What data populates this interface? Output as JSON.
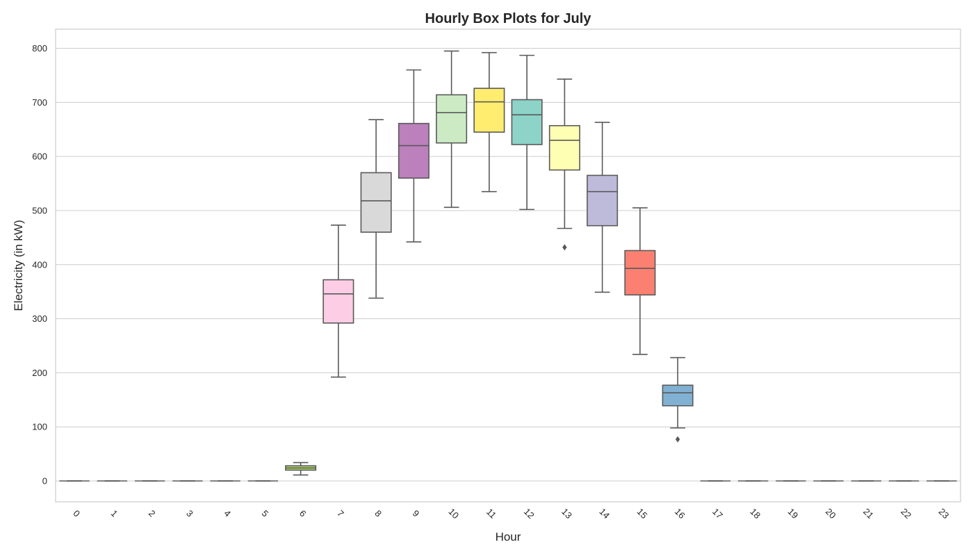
{
  "chart_data": {
    "type": "box",
    "title": "Hourly Box Plots for July",
    "xlabel": "Hour",
    "ylabel": "Electricity (in kW)",
    "ylim": [
      -40,
      835
    ],
    "yticks": [
      0,
      100,
      200,
      300,
      400,
      500,
      600,
      700,
      800
    ],
    "grid": "horizontal",
    "categories": [
      "0",
      "1",
      "2",
      "3",
      "4",
      "5",
      "6",
      "7",
      "8",
      "9",
      "10",
      "11",
      "12",
      "13",
      "14",
      "15",
      "16",
      "17",
      "18",
      "19",
      "20",
      "21",
      "22",
      "23"
    ],
    "boxes": [
      {
        "whislo": 0,
        "q1": 0,
        "med": 0,
        "q3": 0,
        "whishi": 0,
        "fliers": [],
        "color": "#8dd3c7"
      },
      {
        "whislo": 0,
        "q1": 0,
        "med": 0,
        "q3": 0,
        "whishi": 0,
        "fliers": [],
        "color": "#ffffb3"
      },
      {
        "whislo": 0,
        "q1": 0,
        "med": 0,
        "q3": 0,
        "whishi": 0,
        "fliers": [],
        "color": "#bebada"
      },
      {
        "whislo": 0,
        "q1": 0,
        "med": 0,
        "q3": 0,
        "whishi": 0,
        "fliers": [],
        "color": "#fb8072"
      },
      {
        "whislo": 0,
        "q1": 0,
        "med": 0,
        "q3": 0,
        "whishi": 0,
        "fliers": [],
        "color": "#80b1d3"
      },
      {
        "whislo": 0,
        "q1": 0,
        "med": 0,
        "q3": 0,
        "whishi": 0,
        "fliers": [],
        "color": "#fdb462"
      },
      {
        "whislo": 11,
        "q1": 20,
        "med": 24,
        "q3": 28,
        "whishi": 34,
        "fliers": [],
        "color": "#b3de69"
      },
      {
        "whislo": 192,
        "q1": 292,
        "med": 346,
        "q3": 372,
        "whishi": 473,
        "fliers": [],
        "color": "#fccde5"
      },
      {
        "whislo": 338,
        "q1": 460,
        "med": 518,
        "q3": 570,
        "whishi": 668,
        "fliers": [],
        "color": "#d9d9d9"
      },
      {
        "whislo": 442,
        "q1": 560,
        "med": 620,
        "q3": 661,
        "whishi": 760,
        "fliers": [],
        "color": "#bc80bd"
      },
      {
        "whislo": 506,
        "q1": 625,
        "med": 681,
        "q3": 714,
        "whishi": 795,
        "fliers": [],
        "color": "#ccebc5"
      },
      {
        "whislo": 535,
        "q1": 645,
        "med": 701,
        "q3": 726,
        "whishi": 792,
        "fliers": [],
        "color": "#ffed6f"
      },
      {
        "whislo": 502,
        "q1": 622,
        "med": 677,
        "q3": 705,
        "whishi": 787,
        "fliers": [],
        "color": "#8dd3c7"
      },
      {
        "whislo": 467,
        "q1": 575,
        "med": 630,
        "q3": 657,
        "whishi": 743,
        "fliers": [
          432
        ],
        "color": "#ffffb3"
      },
      {
        "whislo": 349,
        "q1": 472,
        "med": 535,
        "q3": 565,
        "whishi": 663,
        "fliers": [],
        "color": "#bebada"
      },
      {
        "whislo": 234,
        "q1": 344,
        "med": 393,
        "q3": 426,
        "whishi": 505,
        "fliers": [],
        "color": "#fb8072"
      },
      {
        "whislo": 98,
        "q1": 139,
        "med": 163,
        "q3": 177,
        "whishi": 228,
        "fliers": [
          77
        ],
        "color": "#80b1d3"
      },
      {
        "whislo": 0,
        "q1": 0,
        "med": 0,
        "q3": 0,
        "whishi": 0,
        "fliers": [],
        "color": "#fdb462"
      },
      {
        "whislo": 0,
        "q1": 0,
        "med": 0,
        "q3": 0,
        "whishi": 0,
        "fliers": [],
        "color": "#b3de69"
      },
      {
        "whislo": 0,
        "q1": 0,
        "med": 0,
        "q3": 0,
        "whishi": 0,
        "fliers": [],
        "color": "#fccde5"
      },
      {
        "whislo": 0,
        "q1": 0,
        "med": 0,
        "q3": 0,
        "whishi": 0,
        "fliers": [],
        "color": "#d9d9d9"
      },
      {
        "whislo": 0,
        "q1": 0,
        "med": 0,
        "q3": 0,
        "whishi": 0,
        "fliers": [],
        "color": "#bc80bd"
      },
      {
        "whislo": 0,
        "q1": 0,
        "med": 0,
        "q3": 0,
        "whishi": 0,
        "fliers": [],
        "color": "#ccebc5"
      },
      {
        "whislo": 0,
        "q1": 0,
        "med": 0,
        "q3": 0,
        "whishi": 0,
        "fliers": [],
        "color": "#ffed6f"
      }
    ]
  }
}
